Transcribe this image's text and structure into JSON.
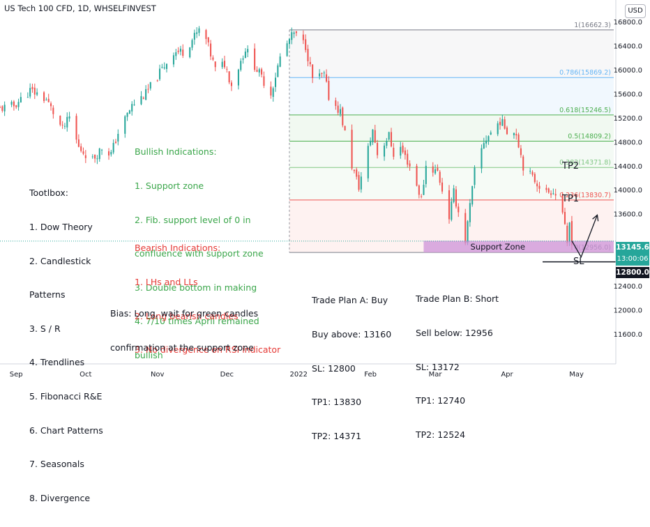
{
  "header": {
    "title": "US Tech 100 CFD, 1D, WHSELFINVEST",
    "currency": "USD"
  },
  "colors": {
    "up": "#26a69a",
    "down": "#ef5350",
    "bullish_text": "#3aa64a",
    "bearish_text": "#e53935",
    "support_fill": "#ce93d8"
  },
  "chart_data": {
    "type": "candlestick",
    "title": "US Tech 100 CFD, 1D, WHSELFINVEST",
    "ylim": [
      11400,
      17000
    ],
    "y_ticks": [
      "16800.0",
      "16400.0",
      "16000.0",
      "15600.0",
      "15200.0",
      "14800.0",
      "14400.0",
      "14000.0",
      "13600.0",
      "12400.0",
      "12000.0",
      "11600.0"
    ],
    "x_ticks": [
      "Sep",
      "Oct",
      "Nov",
      "Dec",
      "2022",
      "Feb",
      "Mar",
      "Apr",
      "May"
    ],
    "close_path": [
      [
        "2021-08-25",
        15350
      ],
      [
        "2021-08-31",
        15400
      ],
      [
        "2021-09-07",
        15650
      ],
      [
        "2021-09-10",
        15600
      ],
      [
        "2021-09-14",
        15500
      ],
      [
        "2021-09-21",
        15000
      ],
      [
        "2021-09-24",
        15200
      ],
      [
        "2021-09-28",
        14700
      ],
      [
        "2021-10-04",
        14500
      ],
      [
        "2021-10-08",
        14700
      ],
      [
        "2021-10-12",
        14600
      ],
      [
        "2021-10-15",
        14950
      ],
      [
        "2021-10-21",
        15400
      ],
      [
        "2021-10-27",
        15600
      ],
      [
        "2021-11-02",
        15950
      ],
      [
        "2021-11-08",
        16300
      ],
      [
        "2021-11-12",
        16300
      ],
      [
        "2021-11-16",
        16500
      ],
      [
        "2021-11-19",
        16650
      ],
      [
        "2021-11-22",
        16500
      ],
      [
        "2021-11-26",
        16000
      ],
      [
        "2021-11-30",
        16100
      ],
      [
        "2021-12-03",
        15750
      ],
      [
        "2021-12-09",
        16350
      ],
      [
        "2021-12-14",
        16000
      ],
      [
        "2021-12-20",
        15600
      ],
      [
        "2021-12-24",
        16200
      ],
      [
        "2021-12-28",
        16500
      ],
      [
        "2021-12-30",
        16600
      ],
      [
        "2022-01-04",
        16400
      ],
      [
        "2022-01-07",
        15850
      ],
      [
        "2022-01-12",
        15900
      ],
      [
        "2022-01-14",
        15550
      ],
      [
        "2022-01-19",
        15300
      ],
      [
        "2022-01-24",
        14400
      ],
      [
        "2022-01-27",
        14050
      ],
      [
        "2022-02-02",
        15000
      ],
      [
        "2022-02-04",
        14600
      ],
      [
        "2022-02-09",
        14900
      ],
      [
        "2022-02-11",
        14600
      ],
      [
        "2022-02-14",
        14700
      ],
      [
        "2022-02-18",
        14400
      ],
      [
        "2022-02-23",
        13850
      ],
      [
        "2022-02-25",
        14400
      ],
      [
        "2022-03-02",
        14300
      ],
      [
        "2022-03-07",
        13550
      ],
      [
        "2022-03-09",
        13950
      ],
      [
        "2022-03-14",
        13150
      ],
      [
        "2022-03-18",
        14300
      ],
      [
        "2022-03-22",
        14800
      ],
      [
        "2022-03-25",
        14950
      ],
      [
        "2022-03-29",
        15150
      ],
      [
        "2022-04-01",
        15000
      ],
      [
        "2022-04-05",
        14950
      ],
      [
        "2022-04-08",
        14400
      ],
      [
        "2022-04-12",
        14200
      ],
      [
        "2022-04-18",
        13950
      ],
      [
        "2022-04-21",
        14000
      ],
      [
        "2022-04-25",
        13650
      ],
      [
        "2022-04-27",
        13050
      ],
      [
        "2022-04-28",
        13450
      ],
      [
        "2022-04-29",
        13150
      ]
    ],
    "fibonacci": [
      {
        "label": "1(16662.3)",
        "level": 1,
        "value": 16662.3
      },
      {
        "label": "0.786(15869.2)",
        "level": 0.786,
        "value": 15869.2
      },
      {
        "label": "0.618(15246.5)",
        "level": 0.618,
        "value": 15246.5
      },
      {
        "label": "0.5(14809.2)",
        "level": 0.5,
        "value": 14809.2
      },
      {
        "label": "0.382(14371.8)",
        "level": 0.382,
        "value": 14371.8
      },
      {
        "label": "0.236(13830.7)",
        "level": 0.236,
        "value": 13830.7
      },
      {
        "label": "0(12956.0)",
        "level": 0,
        "value": 12956.0
      }
    ],
    "fib_start": "2021-12-28",
    "support_zone": {
      "label": "Support Zone",
      "low": 12956,
      "high": 13150,
      "start": "2022-02-24"
    },
    "last_price": "13145.6",
    "countdown": "13:00:06",
    "sl_price": "12800.0",
    "projection": [
      [
        "2022-04-29",
        13150
      ],
      [
        "2022-05-03",
        12880
      ],
      [
        "2022-05-10",
        13580
      ]
    ]
  },
  "annotations": {
    "tp2": "TP2",
    "tp1": "TP1",
    "sl": "SL",
    "toolbox": [
      "Tootlbox:",
      "1. Dow Theory",
      "2. Candlestick",
      "Patterns",
      "3. S / R",
      "4. Trendlines",
      "5. Fibonacci R&E",
      "6. Chart Patterns",
      "7. Seasonals",
      "8. Divergence"
    ],
    "bullish": [
      "Bullish Indications:",
      "1. Support zone",
      "2. Fib. support level of 0 in",
      "confluence with support zone",
      "3. Double bottom in making",
      "4. 7/10 times April remained",
      "bullish"
    ],
    "bearish": [
      "Bearish Indications:",
      "1. LHs and LLs",
      "2. Long bearish candles",
      "3. No divergence on RSI indicator"
    ],
    "bias": [
      "Bias: Long, wait for green candles",
      "confirmation at the support zone"
    ],
    "plan_a": [
      "Trade Plan A: Buy",
      "Buy above: 13160",
      "SL: 12800",
      "TP1: 13830",
      "TP2: 14371"
    ],
    "plan_b": [
      "Trade Plan B: Short",
      "Sell below: 12956",
      "SL: 13172",
      "TP1: 12740",
      "TP2: 12524"
    ]
  }
}
